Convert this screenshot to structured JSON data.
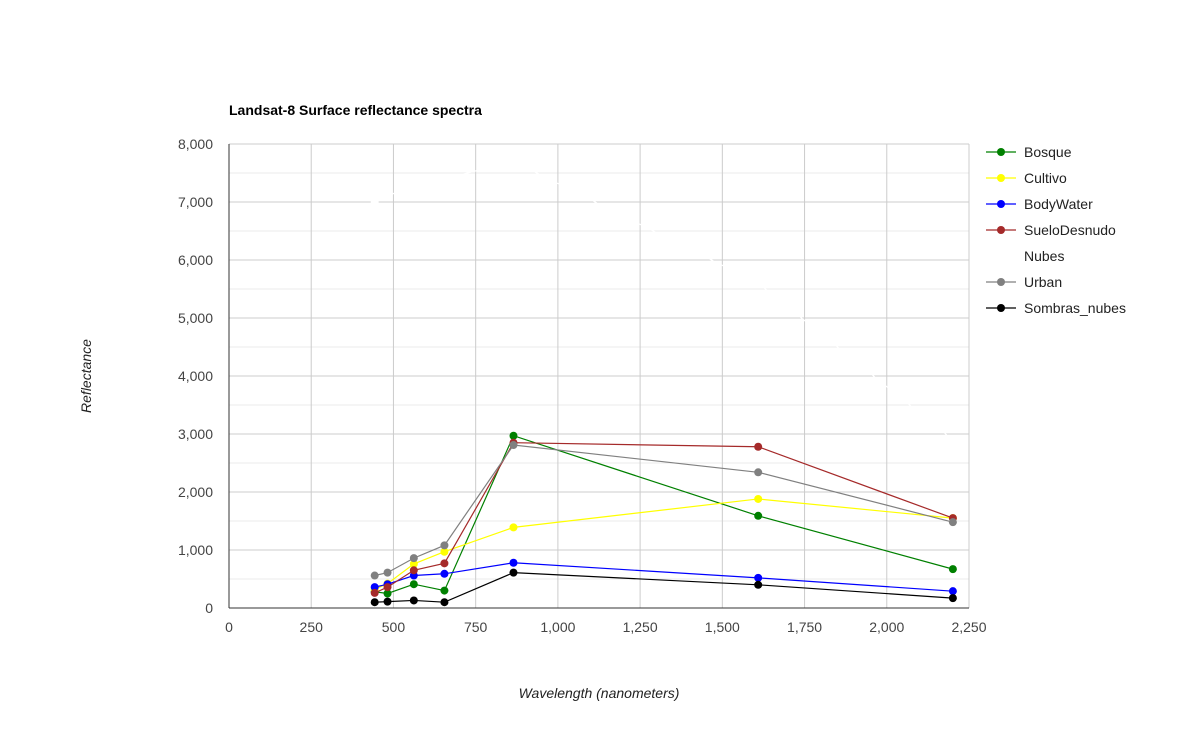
{
  "chart_data": {
    "type": "line",
    "title": "Landsat-8 Surface reflectance spectra",
    "xlabel": "Wavelength (nanometers)",
    "ylabel": "Reflectance",
    "xlim": [
      0,
      2250
    ],
    "ylim": [
      0,
      8000
    ],
    "x_ticks": [
      "0",
      "250",
      "500",
      "750",
      "1,000",
      "1,250",
      "1,500",
      "1,750",
      "2,000",
      "2,250"
    ],
    "x_tick_values": [
      0,
      250,
      500,
      750,
      1000,
      1250,
      1500,
      1750,
      2000,
      2250
    ],
    "y_ticks": [
      "0",
      "1,000",
      "2,000",
      "3,000",
      "4,000",
      "5,000",
      "6,000",
      "7,000",
      "8,000"
    ],
    "y_tick_values": [
      0,
      1000,
      2000,
      3000,
      4000,
      5000,
      6000,
      7000,
      8000
    ],
    "grid": true,
    "legend_position": "right",
    "x": [
      443,
      482,
      562,
      655,
      865,
      1609,
      2201
    ],
    "series": [
      {
        "name": "Bosque",
        "color": "#008000",
        "values": [
          280,
          250,
          410,
          300,
          2970,
          1590,
          670
        ]
      },
      {
        "name": "Cultivo",
        "color": "#ffff00",
        "values": [
          320,
          420,
          760,
          970,
          1390,
          1880,
          1550
        ]
      },
      {
        "name": "BodyWater",
        "color": "#0000ff",
        "values": [
          360,
          410,
          560,
          590,
          780,
          520,
          290
        ]
      },
      {
        "name": "SueloDesnudo",
        "color": "#a52a2a",
        "values": [
          260,
          360,
          650,
          770,
          2850,
          2780,
          1550
        ]
      },
      {
        "name": "Nubes",
        "color": "#ffffff",
        "values": [
          7000,
          7100,
          7300,
          7400,
          7700,
          5600,
          2900
        ]
      },
      {
        "name": "Urban",
        "color": "#808080",
        "values": [
          560,
          610,
          860,
          1080,
          2810,
          2340,
          1480
        ]
      },
      {
        "name": "Sombras_nubes",
        "color": "#000000",
        "values": [
          100,
          110,
          130,
          100,
          610,
          400,
          170
        ]
      }
    ]
  }
}
